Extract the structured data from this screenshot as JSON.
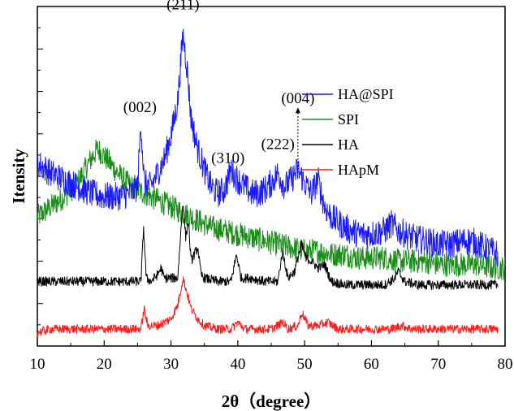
{
  "chart_data": {
    "type": "line",
    "xlabel": "2θ（degree）",
    "ylabel": "Itensity",
    "xlim": [
      10,
      80
    ],
    "ylim": [
      0,
      100
    ],
    "xticks": [
      10,
      20,
      30,
      40,
      50,
      60,
      70,
      80
    ],
    "grid": false,
    "legend_position": "top-right",
    "series": [
      {
        "name": "HA@SPI",
        "color": "#1a1aff",
        "points": [
          [
            10,
            54
          ],
          [
            12,
            51
          ],
          [
            14,
            49
          ],
          [
            16,
            47
          ],
          [
            18,
            45
          ],
          [
            20,
            44
          ],
          [
            22,
            44
          ],
          [
            24,
            45
          ],
          [
            25,
            47
          ],
          [
            25.5,
            66
          ],
          [
            26,
            48
          ],
          [
            27,
            47
          ],
          [
            28,
            51
          ],
          [
            29,
            55
          ],
          [
            30,
            62
          ],
          [
            31,
            72
          ],
          [
            31.8,
            92
          ],
          [
            32.5,
            80
          ],
          [
            33,
            67
          ],
          [
            34,
            58
          ],
          [
            35,
            52
          ],
          [
            36,
            47
          ],
          [
            37,
            45
          ],
          [
            38,
            46
          ],
          [
            39,
            52
          ],
          [
            40,
            49
          ],
          [
            41,
            47
          ],
          [
            42,
            45
          ],
          [
            43,
            45
          ],
          [
            44,
            46
          ],
          [
            45,
            48
          ],
          [
            46,
            51
          ],
          [
            47,
            47
          ],
          [
            48,
            49
          ],
          [
            49,
            52
          ],
          [
            50,
            48
          ],
          [
            51,
            45
          ],
          [
            52,
            49
          ],
          [
            53,
            41
          ],
          [
            54,
            38
          ],
          [
            56,
            35
          ],
          [
            58,
            33
          ],
          [
            60,
            33
          ],
          [
            62,
            34
          ],
          [
            63,
            36
          ],
          [
            64,
            34
          ],
          [
            66,
            32
          ],
          [
            68,
            31
          ],
          [
            70,
            30
          ],
          [
            72,
            30
          ],
          [
            74,
            31
          ],
          [
            75,
            31
          ],
          [
            77,
            29
          ],
          [
            79,
            27
          ]
        ]
      },
      {
        "name": "SPI",
        "color": "#1a8c1a",
        "points": [
          [
            10,
            38
          ],
          [
            12,
            41
          ],
          [
            14,
            44
          ],
          [
            16,
            48
          ],
          [
            18,
            55
          ],
          [
            19,
            58
          ],
          [
            20,
            56
          ],
          [
            22,
            51
          ],
          [
            24,
            47
          ],
          [
            26,
            45
          ],
          [
            28,
            43
          ],
          [
            30,
            41
          ],
          [
            32,
            39
          ],
          [
            34,
            37
          ],
          [
            36,
            35
          ],
          [
            38,
            34
          ],
          [
            40,
            33
          ],
          [
            42,
            32
          ],
          [
            44,
            31
          ],
          [
            46,
            30
          ],
          [
            48,
            29
          ],
          [
            50,
            28
          ],
          [
            52,
            28
          ],
          [
            54,
            27
          ],
          [
            56,
            27
          ],
          [
            58,
            26
          ],
          [
            60,
            26
          ],
          [
            62,
            26
          ],
          [
            64,
            25
          ],
          [
            66,
            25
          ],
          [
            68,
            25
          ],
          [
            70,
            24
          ],
          [
            72,
            24
          ],
          [
            74,
            24
          ],
          [
            76,
            24
          ],
          [
            78,
            23
          ],
          [
            80,
            23
          ]
        ]
      },
      {
        "name": "HA",
        "color": "#000000",
        "points": [
          [
            10,
            19
          ],
          [
            12,
            19
          ],
          [
            14,
            19
          ],
          [
            16,
            19
          ],
          [
            18,
            19
          ],
          [
            20,
            19
          ],
          [
            22,
            19
          ],
          [
            24,
            19
          ],
          [
            25.5,
            19
          ],
          [
            25.9,
            35
          ],
          [
            26.3,
            20
          ],
          [
            27,
            19
          ],
          [
            28,
            21
          ],
          [
            28.5,
            23
          ],
          [
            29,
            20
          ],
          [
            30,
            20
          ],
          [
            31,
            20
          ],
          [
            31.8,
            43
          ],
          [
            32.2,
            32
          ],
          [
            32.6,
            37
          ],
          [
            33,
            25
          ],
          [
            34,
            29
          ],
          [
            34.5,
            21
          ],
          [
            35,
            20
          ],
          [
            37,
            19
          ],
          [
            39,
            19
          ],
          [
            39.8,
            27
          ],
          [
            40.5,
            20
          ],
          [
            42,
            20
          ],
          [
            44,
            19
          ],
          [
            46,
            19
          ],
          [
            46.7,
            28
          ],
          [
            47.5,
            20
          ],
          [
            48.5,
            22
          ],
          [
            49.5,
            30
          ],
          [
            50.2,
            26
          ],
          [
            51,
            25
          ],
          [
            52,
            23
          ],
          [
            53,
            24
          ],
          [
            54,
            19
          ],
          [
            56,
            18
          ],
          [
            58,
            18
          ],
          [
            60,
            18
          ],
          [
            62,
            18
          ],
          [
            63.5,
            20
          ],
          [
            64,
            22
          ],
          [
            65,
            19
          ],
          [
            67,
            18
          ],
          [
            70,
            18
          ],
          [
            73,
            18
          ],
          [
            76,
            18
          ],
          [
            79,
            18
          ]
        ]
      },
      {
        "name": "HApM",
        "color": "#ff1a1a",
        "points": [
          [
            10,
            4
          ],
          [
            12,
            5
          ],
          [
            14,
            5
          ],
          [
            16,
            5
          ],
          [
            18,
            5
          ],
          [
            20,
            5
          ],
          [
            22,
            5
          ],
          [
            24,
            5
          ],
          [
            25.5,
            5
          ],
          [
            26,
            11
          ],
          [
            26.5,
            6
          ],
          [
            28,
            6
          ],
          [
            29,
            7
          ],
          [
            30,
            8
          ],
          [
            31,
            12
          ],
          [
            31.8,
            20
          ],
          [
            32.5,
            15
          ],
          [
            33,
            11
          ],
          [
            34,
            8
          ],
          [
            35,
            6
          ],
          [
            37,
            5
          ],
          [
            39,
            5
          ],
          [
            40,
            7
          ],
          [
            41,
            5
          ],
          [
            43,
            5
          ],
          [
            45,
            5
          ],
          [
            46.8,
            7
          ],
          [
            47.5,
            5
          ],
          [
            49,
            6
          ],
          [
            49.6,
            10
          ],
          [
            50.5,
            6
          ],
          [
            52,
            6
          ],
          [
            53.5,
            7
          ],
          [
            55,
            5
          ],
          [
            57,
            5
          ],
          [
            60,
            5
          ],
          [
            63,
            5
          ],
          [
            64.5,
            6
          ],
          [
            66,
            5
          ],
          [
            70,
            5
          ],
          [
            74,
            5
          ],
          [
            78,
            5
          ],
          [
            79,
            5
          ]
        ]
      }
    ],
    "annotations": [
      {
        "text": "(211)",
        "x": 31.8,
        "y": 92
      },
      {
        "text": "(002)",
        "x": 25.6,
        "y": 66
      },
      {
        "text": "(004)",
        "x": 49.0,
        "y": 60
      },
      {
        "text": "(310)",
        "x": 39.5,
        "y": 53
      },
      {
        "text": "(222)",
        "x": 46.0,
        "y": 57
      }
    ]
  }
}
